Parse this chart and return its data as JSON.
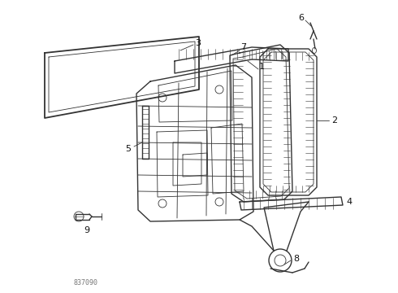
{
  "bg_color": "#ffffff",
  "line_color": "#333333",
  "label_color": "#111111",
  "diagram_code": "837090",
  "figsize": [
    4.9,
    3.6
  ],
  "dpi": 100
}
